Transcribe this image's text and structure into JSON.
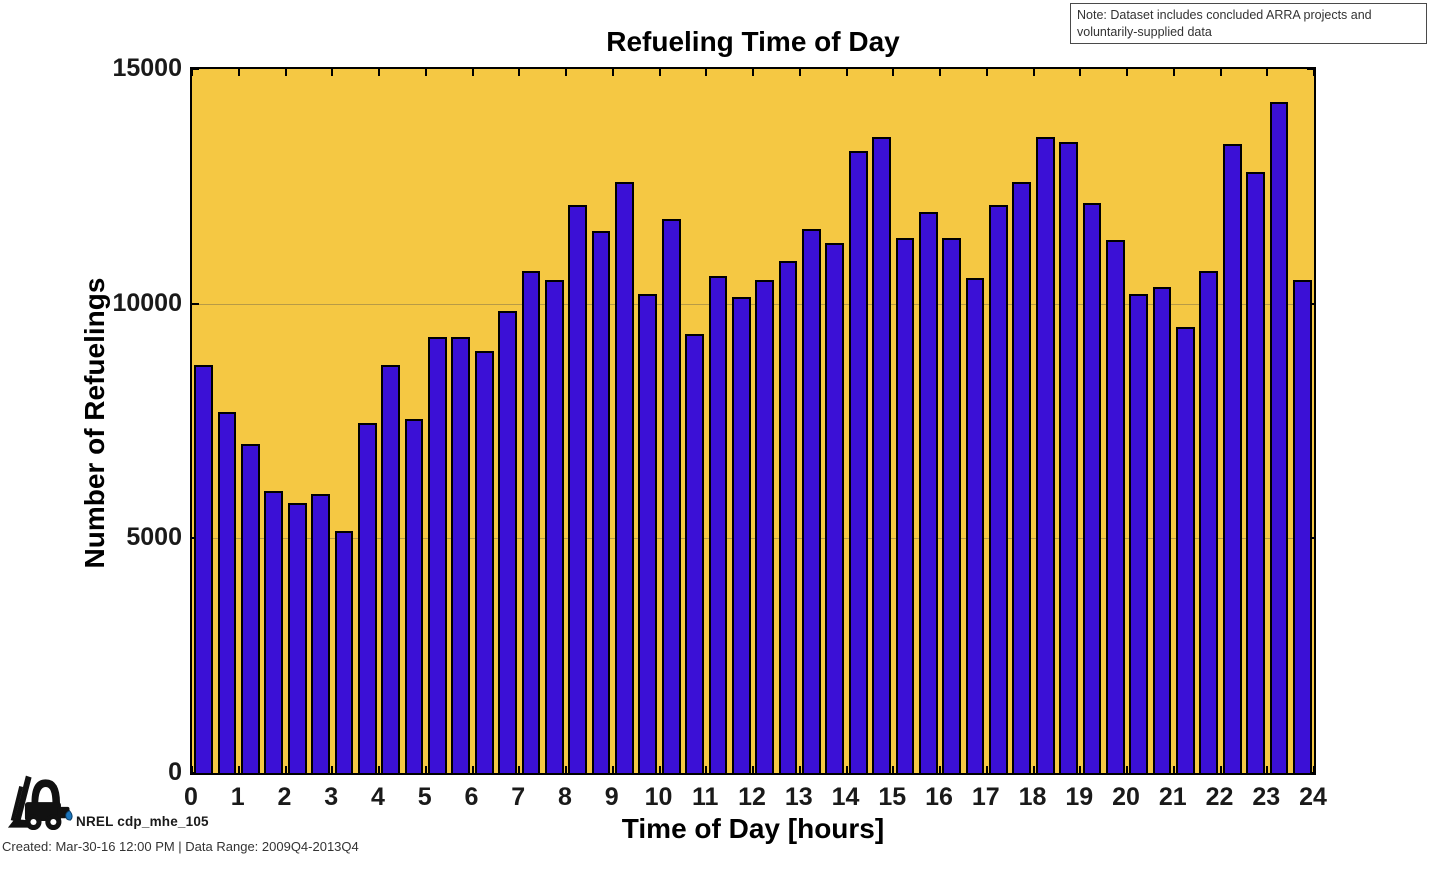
{
  "note": {
    "line1": "Note: Dataset includes concluded ARRA projects and",
    "line2": "voluntarily-supplied data"
  },
  "footer": {
    "logo_label": "NREL cdp_mhe_105",
    "created_line": "Created: Mar-30-16 12:00 PM | Data Range: 2009Q4-2013Q4"
  },
  "colors": {
    "bar_fill": "#3B10D6",
    "bar_edge": "#000000",
    "plot_background": "#F5C843",
    "grid_line": "rgba(110,100,75,0.45)",
    "droplet_blue": "#1B75BC",
    "logo_black": "#111111"
  },
  "chart_data": {
    "type": "bar",
    "title": "Refueling Time of Day",
    "xlabel": "Time of Day [hours]",
    "ylabel": "Number of Refuelings",
    "xlim": [
      0,
      24
    ],
    "ylim": [
      0,
      15000
    ],
    "bin_width_hours": 0.5,
    "x_bin_starts": [
      0,
      0.5,
      1,
      1.5,
      2,
      2.5,
      3,
      3.5,
      4,
      4.5,
      5,
      5.5,
      6,
      6.5,
      7,
      7.5,
      8,
      8.5,
      9,
      9.5,
      10,
      10.5,
      11,
      11.5,
      12,
      12.5,
      13,
      13.5,
      14,
      14.5,
      15,
      15.5,
      16,
      16.5,
      17,
      17.5,
      18,
      18.5,
      19,
      19.5,
      20,
      20.5,
      21,
      21.5,
      22,
      22.5,
      23,
      23.5
    ],
    "values": [
      8700,
      7700,
      7000,
      6000,
      5750,
      5950,
      5150,
      7450,
      8700,
      7550,
      9300,
      9300,
      9000,
      9850,
      10700,
      10500,
      12100,
      11550,
      12600,
      10200,
      11800,
      9350,
      10600,
      10150,
      10500,
      10900,
      11600,
      11300,
      13250,
      13550,
      11400,
      11950,
      11400,
      10550,
      12100,
      12600,
      13550,
      13450,
      12150,
      11350,
      10200,
      10350,
      9500,
      10700,
      13400,
      12800,
      14300,
      10500
    ],
    "x_tick_labels": [
      "0",
      "1",
      "2",
      "3",
      "4",
      "5",
      "6",
      "7",
      "8",
      "9",
      "10",
      "11",
      "12",
      "13",
      "14",
      "15",
      "16",
      "17",
      "18",
      "19",
      "20",
      "21",
      "22",
      "23",
      "24"
    ],
    "y_ticks": [
      0,
      5000,
      10000,
      15000
    ],
    "y_tick_labels": [
      "0",
      "5000",
      "10000",
      "15000"
    ],
    "grid_y": [
      5000,
      10000
    ],
    "grid": "horizontal-faint",
    "legend": "none",
    "bar_relative_width": 0.8
  }
}
